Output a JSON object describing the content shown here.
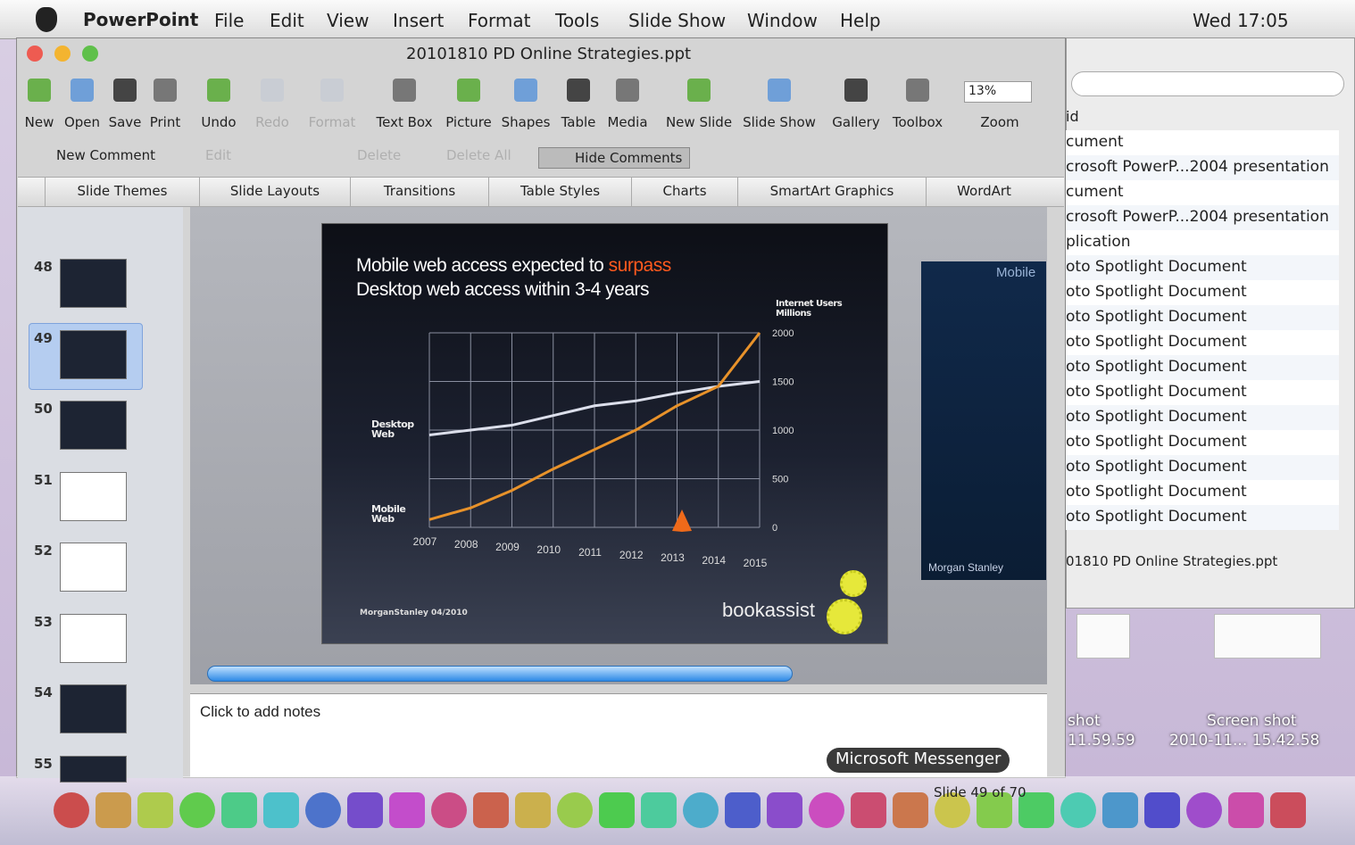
{
  "menu_bar": {
    "app": "PowerPoint",
    "items": [
      "File",
      "Edit",
      "View",
      "Insert",
      "Format",
      "Tools",
      "Slide Show",
      "Window",
      "Help"
    ],
    "clock": "Wed 17:05"
  },
  "window": {
    "title": "20101810 PD Online Strategies.ppt"
  },
  "toolbar": {
    "buttons": [
      "New",
      "Open",
      "Save",
      "Print",
      "Undo",
      "Redo",
      "Format",
      "Text Box",
      "Picture",
      "Shapes",
      "Table",
      "Media",
      "New Slide",
      "Slide Show",
      "Gallery",
      "Toolbox",
      "Zoom"
    ],
    "zoom_value": "13%"
  },
  "comments_bar": {
    "buttons": [
      "New Comment",
      "Edit",
      "Delete",
      "Delete All",
      "Hide Comments"
    ]
  },
  "ribbon_tabs": [
    "Slide Themes",
    "Slide Layouts",
    "Transitions",
    "Table Styles",
    "Charts",
    "SmartArt Graphics",
    "WordArt"
  ],
  "thumbnails": [
    48,
    49,
    50,
    51,
    52,
    53,
    54,
    55
  ],
  "slide": {
    "title_line1": "Mobile web access expected to",
    "title_highlight": "surpass",
    "title_line2": "Desktop web access within 3-4 years",
    "source": "MorganStanley 04/2010",
    "brand": "bookassist",
    "chart": {
      "type": "line",
      "title": "Internet Users Millions",
      "x": [
        2007,
        2008,
        2009,
        2010,
        2011,
        2012,
        2013,
        2014,
        2015
      ],
      "xlim": [
        2007,
        2015
      ],
      "xticks": [
        2007,
        2008,
        2009,
        2010,
        2011,
        2012,
        2013,
        2014,
        2015
      ],
      "ylim": [
        0,
        2000
      ],
      "yticks": [
        0,
        500,
        1000,
        1500,
        2000
      ],
      "grid": true,
      "series": [
        {
          "name": "Desktop Web",
          "color": "#dcdfeb",
          "values": [
            950,
            1000,
            1050,
            1150,
            1250,
            1300,
            1380,
            1450,
            1500
          ]
        },
        {
          "name": "Mobile Web",
          "color": "#e8922a",
          "values": [
            80,
            200,
            380,
            600,
            800,
            1000,
            1250,
            1450,
            2000
          ]
        }
      ]
    }
  },
  "next_slide": {
    "title": "Mobile",
    "source": "Morgan Stanley"
  },
  "notes_placeholder": "Click to add notes",
  "status": "Slide 49 of 70",
  "side_panel": {
    "header": "id",
    "rows": [
      "cument",
      "crosoft PowerP...2004 presentation",
      "cument",
      "crosoft PowerP...2004 presentation",
      "plication",
      "oto Spotlight Document",
      "oto Spotlight Document",
      "oto Spotlight Document",
      "oto Spotlight Document",
      "oto Spotlight Document",
      "oto Spotlight Document",
      "oto Spotlight Document",
      "oto Spotlight Document",
      "oto Spotlight Document",
      "oto Spotlight Document",
      "oto Spotlight Document"
    ],
    "filename": "01810 PD Online Strategies.ppt"
  },
  "desktop_icons": [
    {
      "line1": "shot",
      "line2": "11.59.59"
    },
    {
      "line1": "Screen shot",
      "line2": "2010-11... 15.42.58"
    }
  ],
  "dock_tooltip": "Microsoft Messenger"
}
